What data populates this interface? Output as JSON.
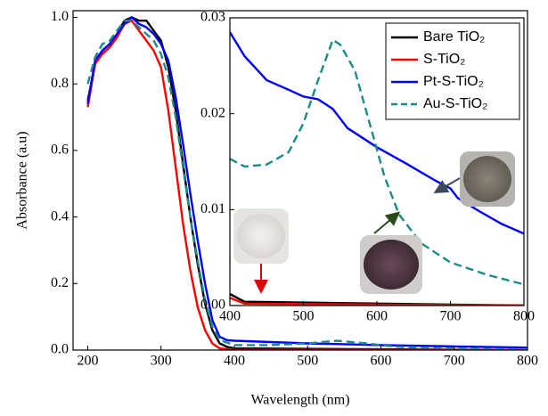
{
  "chart_data": [
    {
      "type": "line",
      "xlabel": "Wavelength (nm)",
      "ylabel": "Absorbance (a.u)",
      "xlim": [
        180,
        800
      ],
      "xticks": [
        200,
        300,
        400,
        500,
        600,
        700,
        800
      ],
      "ylim": [
        0,
        1.02
      ],
      "yticks": [
        {
          "value": 0,
          "label": "0.0"
        },
        0.2,
        0.4,
        0.6,
        0.8,
        {
          "value": 1,
          "label": "1.0"
        }
      ],
      "series": [
        {
          "color": "#000000",
          "style": "solid",
          "x": [
            200,
            210,
            220,
            230,
            240,
            250,
            260,
            270,
            280,
            290,
            300,
            310,
            320,
            330,
            340,
            350,
            360,
            370,
            380,
            390,
            400,
            800
          ],
          "values": [
            0.75,
            0.86,
            0.9,
            0.92,
            0.95,
            0.99,
            1.0,
            0.99,
            0.99,
            0.96,
            0.93,
            0.85,
            0.72,
            0.56,
            0.4,
            0.26,
            0.14,
            0.06,
            0.02,
            0.01,
            0.005,
            0.0
          ]
        },
        {
          "color": "#ff0000",
          "style": "solid",
          "x": [
            200,
            210,
            220,
            230,
            240,
            250,
            260,
            270,
            280,
            290,
            300,
            310,
            320,
            330,
            340,
            350,
            360,
            370,
            380,
            400,
            800
          ],
          "values": [
            0.73,
            0.86,
            0.89,
            0.91,
            0.94,
            0.98,
            0.99,
            0.96,
            0.93,
            0.9,
            0.85,
            0.72,
            0.55,
            0.38,
            0.24,
            0.13,
            0.06,
            0.02,
            0.005,
            0.001,
            0.0
          ]
        },
        {
          "color": "#0000ff",
          "style": "solid",
          "x": [
            200,
            210,
            220,
            230,
            240,
            250,
            260,
            270,
            280,
            290,
            300,
            310,
            320,
            330,
            340,
            350,
            360,
            370,
            380,
            390,
            400,
            500,
            600,
            700,
            800
          ],
          "values": [
            0.74,
            0.87,
            0.9,
            0.92,
            0.95,
            0.98,
            1.0,
            0.98,
            0.97,
            0.95,
            0.92,
            0.87,
            0.76,
            0.62,
            0.47,
            0.33,
            0.2,
            0.09,
            0.04,
            0.03,
            0.028,
            0.02,
            0.015,
            0.011,
            0.0075
          ]
        },
        {
          "color": "#1a8a8a",
          "style": "dashed",
          "x": [
            200,
            210,
            220,
            230,
            240,
            250,
            260,
            270,
            280,
            290,
            300,
            310,
            320,
            330,
            340,
            350,
            360,
            370,
            380,
            400,
            450,
            500,
            540,
            580,
            620,
            700,
            800
          ],
          "values": [
            0.8,
            0.88,
            0.92,
            0.93,
            0.96,
            0.99,
            0.99,
            0.97,
            0.95,
            0.93,
            0.89,
            0.82,
            0.7,
            0.55,
            0.4,
            0.27,
            0.15,
            0.07,
            0.03,
            0.015,
            0.015,
            0.02,
            0.028,
            0.02,
            0.01,
            0.005,
            0.002
          ]
        }
      ]
    },
    {
      "type": "line",
      "legend": "upper right",
      "xlim": [
        400,
        800
      ],
      "xticks": [
        400,
        500,
        600,
        700,
        800
      ],
      "ylim": [
        0,
        0.03
      ],
      "yticks": [
        {
          "value": 0,
          "label": "0.00"
        },
        0.01,
        0.02,
        0.03
      ],
      "series": [
        {
          "name": "Bare TiO₂",
          "color": "#000000",
          "style": "solid",
          "x": [
            400,
            420,
            800
          ],
          "values": [
            0.0012,
            0.0004,
            0.0
          ]
        },
        {
          "name": "S-TiO₂",
          "color": "#ff0000",
          "style": "solid",
          "x": [
            400,
            420,
            800
          ],
          "values": [
            0.0008,
            0.0002,
            0.0
          ]
        },
        {
          "name": "Pt-S-TiO₂",
          "color": "#0000ff",
          "style": "solid",
          "x": [
            400,
            420,
            450,
            480,
            500,
            520,
            540,
            560,
            600,
            640,
            680,
            700,
            710,
            740,
            770,
            800
          ],
          "values": [
            0.0285,
            0.026,
            0.0235,
            0.0225,
            0.0218,
            0.0215,
            0.0205,
            0.0185,
            0.0165,
            0.0148,
            0.013,
            0.0122,
            0.0112,
            0.0098,
            0.0085,
            0.0075
          ]
        },
        {
          "name": "Au-S-TiO₂",
          "color": "#1a8a8a",
          "style": "dashed",
          "x": [
            400,
            420,
            450,
            480,
            500,
            520,
            540,
            550,
            570,
            590,
            610,
            630,
            660,
            700,
            750,
            800
          ],
          "values": [
            0.0153,
            0.0145,
            0.0147,
            0.016,
            0.019,
            0.0235,
            0.0277,
            0.0272,
            0.0245,
            0.019,
            0.0135,
            0.0095,
            0.0065,
            0.0045,
            0.0032,
            0.0022
          ]
        }
      ]
    }
  ]
}
